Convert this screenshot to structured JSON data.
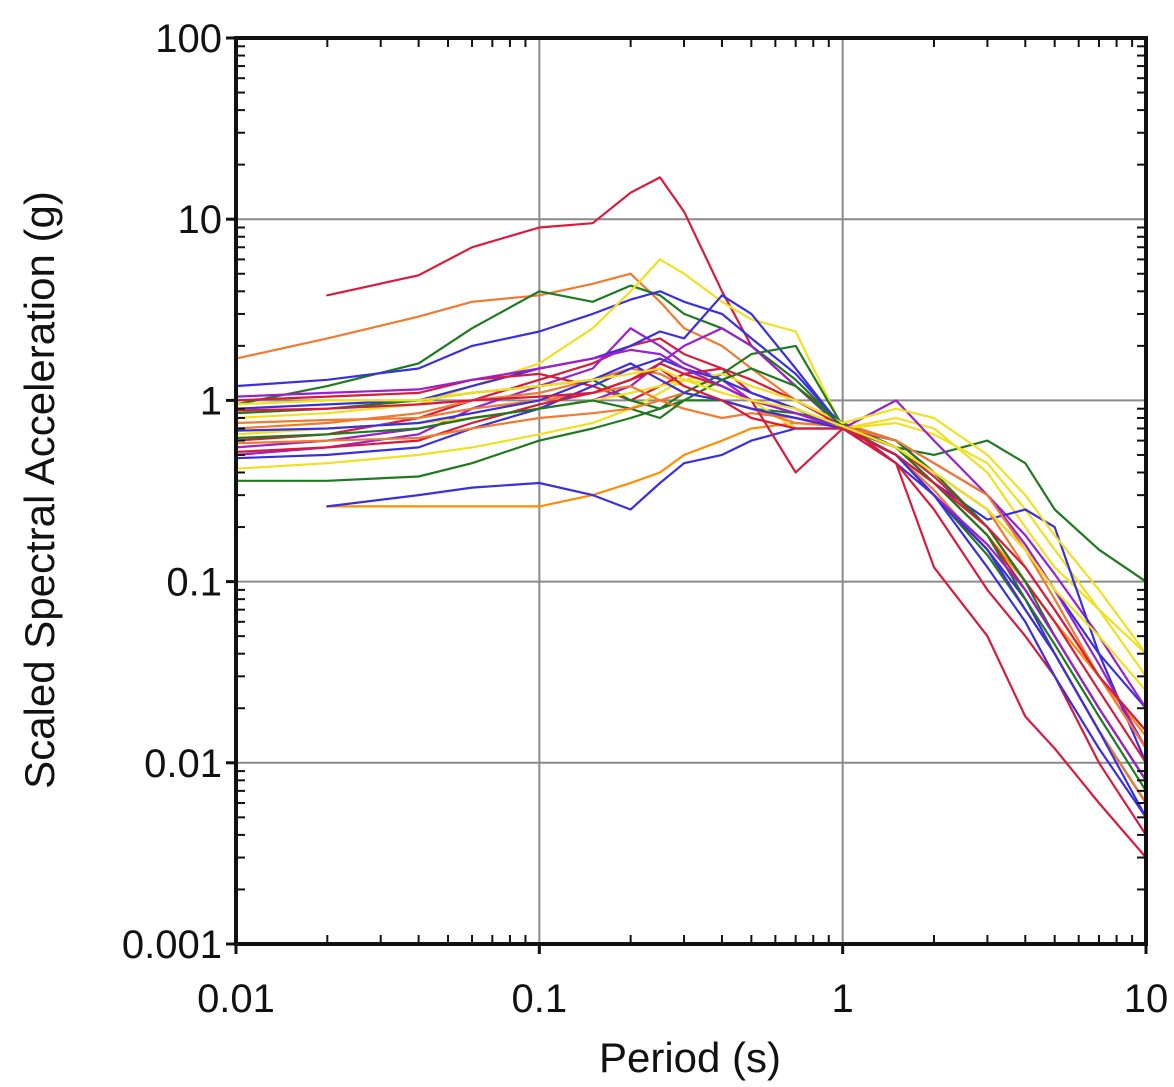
{
  "chart_data": {
    "type": "line",
    "title": "",
    "xlabel": "Period (s)",
    "ylabel": "Scaled Spectral Acceleration (g)",
    "x_scale": "log",
    "y_scale": "log",
    "xlim": [
      0.01,
      10
    ],
    "ylim": [
      0.001,
      100
    ],
    "grid": true,
    "x_ticks": [
      {
        "value": 0.01,
        "label": "0.01"
      },
      {
        "value": 0.1,
        "label": "0.1"
      },
      {
        "value": 1,
        "label": "1"
      },
      {
        "value": 10,
        "label": "10"
      }
    ],
    "y_ticks": [
      {
        "value": 0.001,
        "label": "0.001"
      },
      {
        "value": 0.01,
        "label": "0.01"
      },
      {
        "value": 0.1,
        "label": "0.1"
      },
      {
        "value": 1,
        "label": "1"
      },
      {
        "value": 10,
        "label": "10"
      },
      {
        "value": 100,
        "label": "100"
      }
    ],
    "x": [
      0.01,
      0.02,
      0.04,
      0.06,
      0.1,
      0.15,
      0.2,
      0.25,
      0.3,
      0.4,
      0.5,
      0.7,
      1.0,
      1.5,
      2.0,
      3.0,
      4.0,
      5.0,
      7.0,
      10.0
    ],
    "series": [
      {
        "color": "#d81b3c",
        "values": [
          null,
          3.8,
          4.9,
          7.0,
          9.0,
          9.5,
          14.0,
          17.0,
          11.0,
          4.0,
          2.0,
          1.2,
          0.75,
          0.45,
          0.12,
          0.05,
          0.018,
          0.012,
          0.006,
          0.003
        ]
      },
      {
        "color": "#f07a2e",
        "values": [
          1.7,
          2.2,
          2.9,
          3.5,
          3.8,
          4.4,
          5.0,
          3.5,
          2.5,
          2.0,
          1.5,
          1.0,
          0.75,
          0.6,
          0.4,
          0.2,
          0.1,
          0.06,
          0.03,
          0.015
        ]
      },
      {
        "color": "#ff8c00",
        "values": [
          null,
          0.26,
          0.26,
          0.26,
          0.26,
          0.3,
          0.35,
          0.4,
          0.5,
          0.6,
          0.7,
          0.75,
          0.72,
          0.55,
          0.35,
          0.18,
          0.1,
          0.06,
          0.03,
          0.014
        ]
      },
      {
        "color": "#3a2fe0",
        "values": [
          null,
          0.26,
          0.3,
          0.33,
          0.35,
          0.3,
          0.25,
          0.35,
          0.45,
          0.5,
          0.6,
          0.7,
          0.7,
          0.5,
          0.3,
          0.15,
          0.08,
          0.04,
          0.015,
          0.006
        ]
      },
      {
        "color": "#1f7a1f",
        "values": [
          0.36,
          0.36,
          0.38,
          0.45,
          0.6,
          0.7,
          0.8,
          0.9,
          1.0,
          1.0,
          0.9,
          0.85,
          0.75,
          0.55,
          0.5,
          0.6,
          0.45,
          0.25,
          0.15,
          0.1
        ]
      },
      {
        "color": "#1f7a1f",
        "values": [
          0.95,
          1.2,
          1.6,
          2.5,
          4.0,
          3.5,
          4.3,
          3.8,
          3.0,
          2.5,
          2.0,
          1.3,
          0.72,
          0.5,
          0.3,
          0.14,
          0.07,
          0.04,
          0.015,
          0.006
        ]
      },
      {
        "color": "#3a2fe0",
        "values": [
          1.2,
          1.3,
          1.5,
          2.0,
          2.4,
          3.0,
          3.6,
          4.0,
          3.5,
          3.0,
          2.2,
          1.4,
          0.72,
          0.6,
          0.4,
          0.25,
          0.15,
          0.09,
          0.04,
          0.02
        ]
      },
      {
        "color": "#f0e020",
        "values": [
          0.8,
          0.85,
          0.95,
          1.2,
          1.6,
          2.5,
          4.0,
          6.0,
          5.0,
          3.5,
          2.8,
          2.4,
          0.7,
          0.8,
          0.7,
          0.4,
          0.2,
          0.12,
          0.07,
          0.04
        ]
      },
      {
        "color": "#d81b3c",
        "values": [
          0.6,
          0.65,
          0.8,
          1.0,
          1.3,
          1.6,
          2.0,
          2.2,
          1.8,
          1.5,
          1.1,
          0.9,
          0.7,
          0.55,
          0.35,
          0.18,
          0.09,
          0.05,
          0.02,
          0.008
        ]
      },
      {
        "color": "#9a1fd0",
        "values": [
          0.5,
          0.55,
          0.65,
          0.9,
          1.2,
          1.5,
          2.5,
          2.0,
          1.6,
          1.3,
          1.0,
          0.85,
          0.7,
          0.6,
          0.45,
          0.3,
          0.18,
          0.11,
          0.05,
          0.02
        ]
      },
      {
        "color": "#f07a2e",
        "values": [
          0.7,
          0.75,
          0.85,
          1.0,
          1.1,
          1.3,
          1.5,
          1.4,
          1.2,
          1.0,
          0.9,
          0.8,
          0.7,
          0.5,
          0.32,
          0.15,
          0.07,
          0.04,
          0.015,
          0.006
        ]
      },
      {
        "color": "#f0e020",
        "values": [
          0.42,
          0.45,
          0.5,
          0.55,
          0.65,
          0.75,
          0.9,
          1.1,
          1.3,
          1.2,
          1.0,
          0.7,
          0.7,
          0.75,
          0.65,
          0.45,
          0.25,
          0.15,
          0.07,
          0.03
        ]
      },
      {
        "color": "#3a2fe0",
        "values": [
          0.9,
          0.95,
          1.0,
          1.2,
          1.5,
          1.7,
          2.0,
          2.4,
          2.2,
          3.8,
          3.0,
          1.5,
          0.7,
          0.5,
          0.35,
          0.22,
          0.25,
          0.2,
          0.04,
          0.01
        ]
      },
      {
        "color": "#d81b3c",
        "values": [
          1.0,
          1.05,
          1.1,
          1.3,
          1.4,
          1.2,
          1.0,
          1.2,
          1.4,
          1.5,
          1.3,
          1.0,
          0.72,
          0.55,
          0.38,
          0.2,
          0.1,
          0.06,
          0.025,
          0.01
        ]
      },
      {
        "color": "#1f7a1f",
        "values": [
          0.85,
          0.9,
          1.0,
          1.1,
          1.2,
          1.3,
          1.0,
          0.9,
          1.1,
          1.4,
          1.8,
          2.0,
          0.72,
          0.6,
          0.4,
          0.2,
          0.1,
          0.05,
          0.02,
          0.008
        ]
      },
      {
        "color": "#9a1fd0",
        "values": [
          0.55,
          0.6,
          0.7,
          0.8,
          0.9,
          1.0,
          1.2,
          1.6,
          2.0,
          2.5,
          2.0,
          1.2,
          0.7,
          1.0,
          0.6,
          0.3,
          0.16,
          0.09,
          0.035,
          0.012
        ]
      },
      {
        "color": "#f0e020",
        "values": [
          0.65,
          0.7,
          0.75,
          0.8,
          0.9,
          1.0,
          1.1,
          1.2,
          1.3,
          1.4,
          1.2,
          1.0,
          0.75,
          0.9,
          0.8,
          0.5,
          0.3,
          0.18,
          0.09,
          0.04
        ]
      },
      {
        "color": "#f07a2e",
        "values": [
          0.75,
          0.78,
          0.8,
          0.9,
          1.0,
          1.1,
          1.2,
          1.0,
          0.9,
          0.8,
          0.85,
          0.8,
          0.72,
          0.55,
          0.4,
          0.25,
          0.12,
          0.07,
          0.03,
          0.012
        ]
      },
      {
        "color": "#3a2fe0",
        "values": [
          0.48,
          0.5,
          0.55,
          0.7,
          0.9,
          1.2,
          1.5,
          1.7,
          1.5,
          1.3,
          1.1,
          0.9,
          0.7,
          0.45,
          0.3,
          0.15,
          0.07,
          0.04,
          0.015,
          0.005
        ]
      },
      {
        "color": "#d81b3c",
        "values": [
          0.52,
          0.55,
          0.6,
          0.75,
          0.95,
          1.1,
          1.3,
          1.6,
          1.4,
          1.2,
          1.0,
          0.4,
          0.7,
          0.45,
          0.25,
          0.09,
          0.05,
          0.03,
          0.01,
          0.004
        ]
      },
      {
        "color": "#1f7a1f",
        "values": [
          0.62,
          0.65,
          0.7,
          0.8,
          0.9,
          1.0,
          0.9,
          0.8,
          1.0,
          1.3,
          1.5,
          1.2,
          0.72,
          0.55,
          0.35,
          0.18,
          0.08,
          0.045,
          0.018,
          0.007
        ]
      },
      {
        "color": "#9a1fd0",
        "values": [
          1.05,
          1.1,
          1.15,
          1.3,
          1.5,
          1.7,
          1.9,
          1.8,
          1.5,
          1.2,
          1.0,
          0.85,
          0.7,
          0.5,
          0.3,
          0.16,
          0.09,
          0.05,
          0.02,
          0.008
        ]
      },
      {
        "color": "#f07a2e",
        "values": [
          0.58,
          0.6,
          0.62,
          0.7,
          0.8,
          0.85,
          0.9,
          1.0,
          1.1,
          1.0,
          0.9,
          0.75,
          0.72,
          0.6,
          0.45,
          0.3,
          0.15,
          0.08,
          0.03,
          0.012
        ]
      },
      {
        "color": "#3a2fe0",
        "values": [
          0.68,
          0.7,
          0.75,
          0.85,
          1.0,
          1.3,
          1.6,
          1.3,
          1.1,
          1.0,
          0.9,
          0.8,
          0.7,
          0.5,
          0.3,
          0.12,
          0.06,
          0.03,
          0.012,
          0.005
        ]
      },
      {
        "color": "#d81b3c",
        "values": [
          0.88,
          0.9,
          0.95,
          1.0,
          1.05,
          1.1,
          1.3,
          1.5,
          1.2,
          1.0,
          0.8,
          0.7,
          0.7,
          0.5,
          0.35,
          0.2,
          0.12,
          0.07,
          0.03,
          0.015
        ]
      },
      {
        "color": "#f0e020",
        "values": [
          0.95,
          1.0,
          1.0,
          1.1,
          1.2,
          1.3,
          1.4,
          1.5,
          1.3,
          1.1,
          1.0,
          0.9,
          0.72,
          0.55,
          0.4,
          0.25,
          0.15,
          0.09,
          0.05,
          0.025
        ]
      }
    ]
  }
}
